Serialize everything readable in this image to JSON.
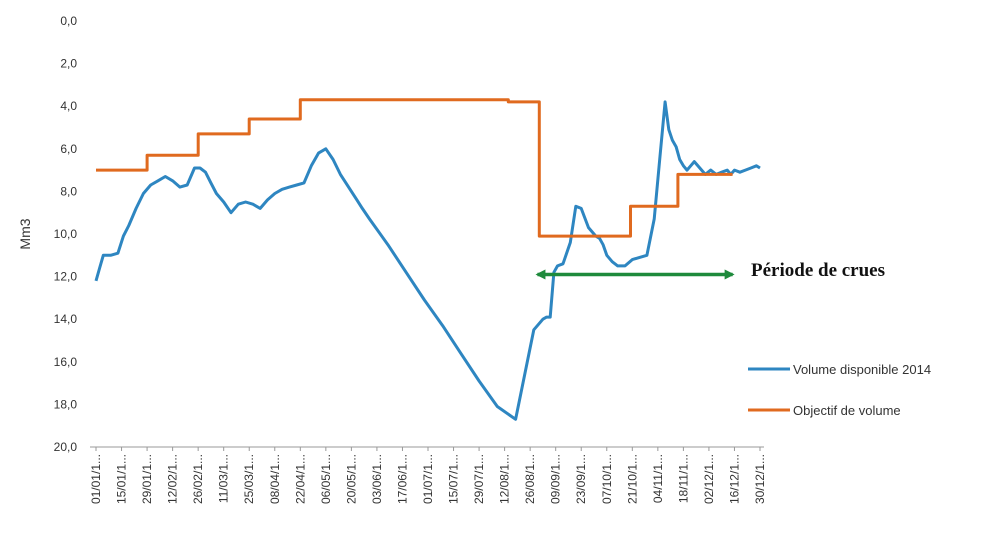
{
  "chart_data": {
    "type": "line",
    "title": "",
    "xlabel": "",
    "ylabel": "Mm3",
    "ylim": [
      0,
      20
    ],
    "y_inverted": true,
    "y_ticks": [
      "0,0",
      "2,0",
      "4,0",
      "6,0",
      "8,0",
      "10,0",
      "12,0",
      "14,0",
      "16,0",
      "18,0",
      "20,0"
    ],
    "x_tick_labels": [
      "01/01/1...",
      "15/01/1...",
      "29/01/1...",
      "12/02/1...",
      "26/02/1...",
      "11/03/1...",
      "25/03/1...",
      "08/04/1...",
      "22/04/1...",
      "06/05/1...",
      "20/05/1...",
      "03/06/1...",
      "17/06/1...",
      "01/07/1...",
      "15/07/1...",
      "29/07/1...",
      "12/08/1...",
      "26/08/1...",
      "09/09/1...",
      "23/09/1...",
      "07/10/1...",
      "21/10/1...",
      "04/11/1...",
      "18/11/1...",
      "02/12/1...",
      "16/12/1...",
      "30/12/1..."
    ],
    "grid": false,
    "legend_position": "right",
    "series": [
      {
        "name": "Volume disponible 2014",
        "color": "#2e86c1",
        "x": [
          0,
          2,
          4,
          8,
          12,
          15,
          18,
          22,
          26,
          30,
          34,
          38,
          42,
          46,
          50,
          54,
          57,
          60,
          63,
          66,
          70,
          74,
          78,
          82,
          86,
          90,
          94,
          98,
          102,
          106,
          110,
          114,
          118,
          122,
          126,
          130,
          134,
          137,
          140,
          143,
          146,
          150,
          160,
          170,
          180,
          190,
          200,
          210,
          220,
          230,
          240,
          245,
          247,
          249,
          251,
          253,
          256,
          260,
          263,
          266,
          270,
          274,
          276,
          278,
          280,
          283,
          286,
          290,
          294,
          298,
          302,
          306,
          309,
          312,
          314,
          316,
          318,
          320,
          322,
          324,
          326,
          328,
          331,
          334,
          337,
          340,
          343,
          346,
          348,
          350,
          353,
          356,
          359,
          362,
          364
        ],
        "values": [
          12.2,
          11.6,
          11.0,
          11.0,
          10.9,
          10.1,
          9.6,
          8.8,
          8.1,
          7.7,
          7.5,
          7.3,
          7.5,
          7.8,
          7.7,
          6.9,
          6.9,
          7.1,
          7.6,
          8.1,
          8.5,
          9.0,
          8.6,
          8.5,
          8.6,
          8.8,
          8.4,
          8.1,
          7.9,
          7.8,
          7.7,
          7.6,
          6.8,
          6.2,
          6.0,
          6.5,
          7.2,
          7.6,
          8.0,
          8.4,
          8.8,
          9.3,
          10.5,
          11.8,
          13.1,
          14.3,
          15.6,
          16.9,
          18.1,
          18.7,
          14.5,
          14.0,
          13.9,
          13.9,
          11.8,
          11.5,
          11.4,
          10.4,
          8.7,
          8.8,
          9.7,
          10.1,
          10.2,
          10.5,
          11.0,
          11.3,
          11.5,
          11.5,
          11.2,
          11.1,
          11.0,
          9.3,
          6.5,
          3.8,
          5.1,
          5.6,
          5.9,
          6.5,
          6.8,
          7.0,
          6.8,
          6.6,
          6.9,
          7.2,
          7.0,
          7.2,
          7.1,
          7.0,
          7.2,
          7.0,
          7.1,
          7.0,
          6.9,
          6.8,
          6.9
        ]
      },
      {
        "name": "Objectif de volume",
        "color": "#e06a1f",
        "x": [
          0,
          28,
          28,
          56,
          56,
          84,
          84,
          112,
          112,
          140,
          140,
          226,
          226,
          243,
          243,
          293,
          293,
          319,
          319,
          349
        ],
        "values": [
          7.0,
          7.0,
          6.3,
          6.3,
          5.3,
          5.3,
          4.6,
          4.6,
          3.7,
          3.7,
          3.7,
          3.7,
          3.8,
          3.8,
          10.1,
          10.1,
          8.7,
          8.7,
          7.2,
          7.2
        ]
      }
    ],
    "annotations": {
      "periode_label": "Période de crues",
      "arrow_color": "#1e8a3c",
      "arrow_from_day": 242,
      "arrow_to_day": 349,
      "arrow_level": 11.9
    },
    "colors": {
      "axis": "#999999",
      "text": "#333333"
    }
  }
}
